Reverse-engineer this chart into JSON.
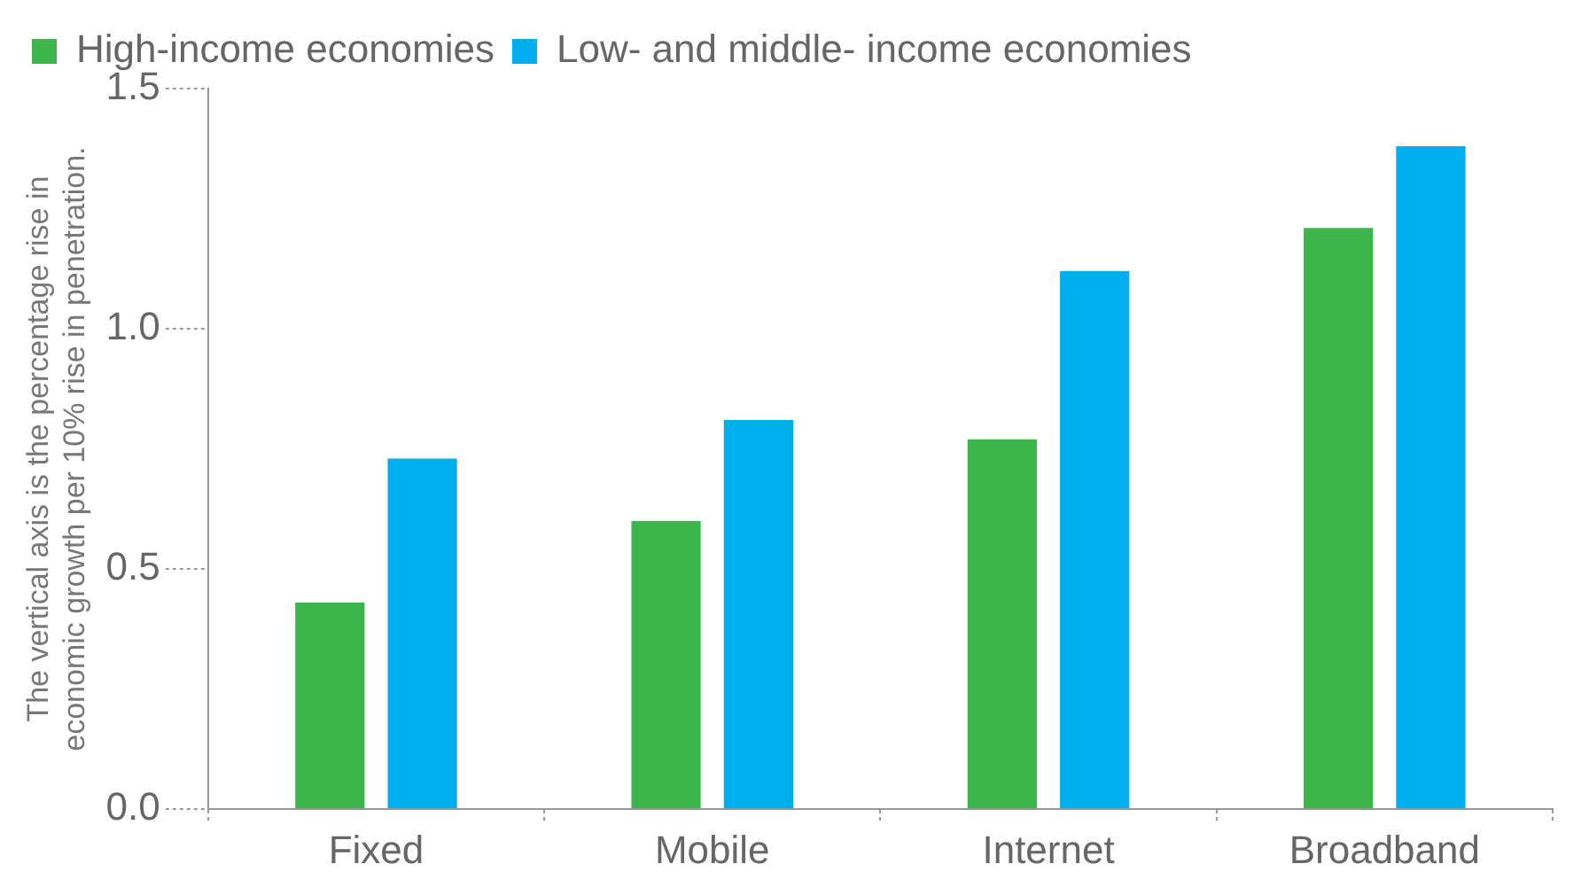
{
  "chart_data": {
    "type": "bar",
    "ylabel": "The vertical axis is the percentage rise in economic growth per 10% rise in penetration.",
    "categories": [
      "Fixed",
      "Mobile",
      "Internet",
      "Broadband"
    ],
    "series": [
      {
        "name": "High-income economies",
        "color": "#3cb54a",
        "values": [
          0.43,
          0.6,
          0.77,
          1.21
        ]
      },
      {
        "name": "Low- and middle- income economies",
        "color": "#00aeef",
        "values": [
          0.73,
          0.81,
          1.12,
          1.38
        ]
      }
    ],
    "ylim": [
      0,
      1.5
    ],
    "yticks": [
      {
        "value": 0,
        "label": "0.0"
      },
      0.5,
      {
        "value": 1,
        "label": "1.0"
      },
      1.5
    ],
    "grid": false,
    "legend": "top"
  }
}
